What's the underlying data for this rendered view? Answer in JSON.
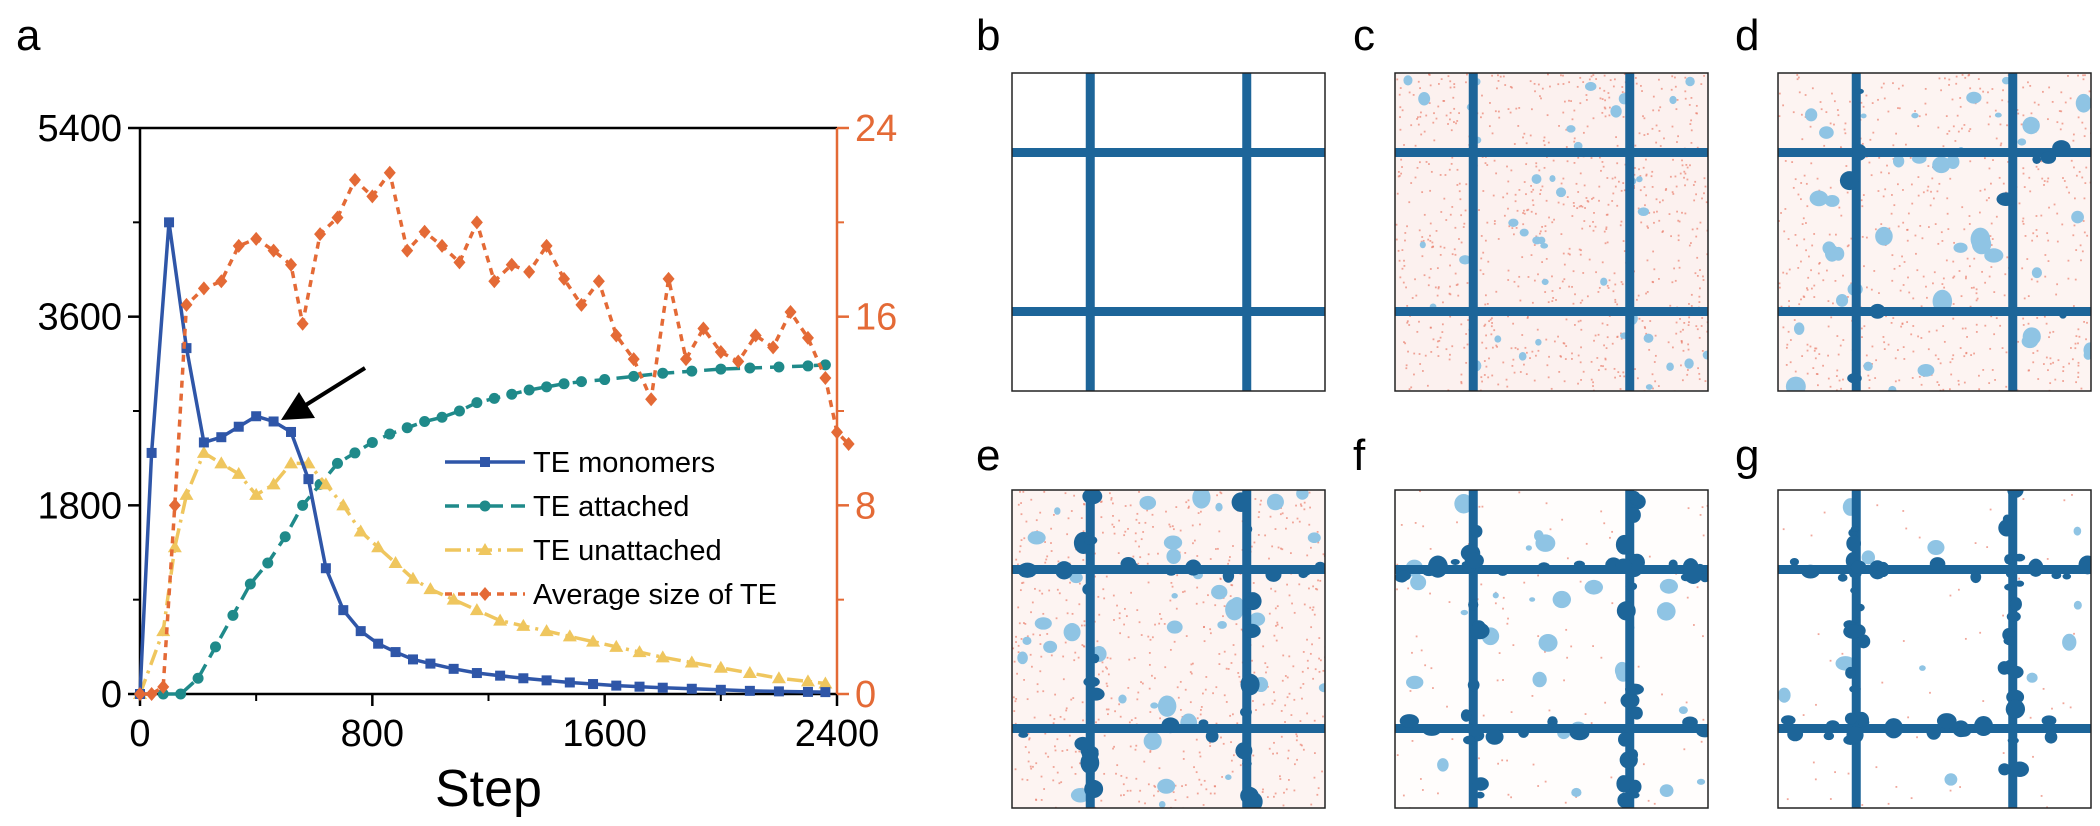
{
  "figure": {
    "panel_labels": [
      "a",
      "b",
      "c",
      "d",
      "e",
      "f",
      "g"
    ]
  },
  "chart_data": {
    "type": "line",
    "xlabel": "Step",
    "ylabel_left": "",
    "ylabel_right": "",
    "xlim": [
      0,
      2400
    ],
    "ylim_left": [
      0,
      5400
    ],
    "ylim_right": [
      0,
      24
    ],
    "xticks": [
      0,
      800,
      1600,
      2400
    ],
    "yticks_left": [
      0,
      1800,
      3600,
      5400
    ],
    "yticks_right": [
      0,
      8,
      16,
      24
    ],
    "legend_position": "center-right",
    "grid": false,
    "annotation": "arrow pointing at TE monomers curve near step 480",
    "colors": {
      "monomers": "#2f56a8",
      "attached": "#1f8a8a",
      "unattached": "#efc65e",
      "avg_size": "#e46a36",
      "right_axis": "#e46a36",
      "lattice": "#1d6599",
      "te_light": "#8fc4e4",
      "background_dots": "#f1b1a6"
    },
    "series": [
      {
        "name": "TE monomers",
        "axis": "left",
        "style": "solid-square",
        "points": [
          [
            0,
            0
          ],
          [
            40,
            2300
          ],
          [
            100,
            4500
          ],
          [
            160,
            3300
          ],
          [
            220,
            2400
          ],
          [
            280,
            2450
          ],
          [
            340,
            2550
          ],
          [
            400,
            2650
          ],
          [
            460,
            2600
          ],
          [
            520,
            2500
          ],
          [
            580,
            2050
          ],
          [
            640,
            1200
          ],
          [
            700,
            800
          ],
          [
            760,
            600
          ],
          [
            820,
            480
          ],
          [
            880,
            400
          ],
          [
            940,
            330
          ],
          [
            1000,
            290
          ],
          [
            1080,
            240
          ],
          [
            1160,
            200
          ],
          [
            1240,
            175
          ],
          [
            1320,
            150
          ],
          [
            1400,
            130
          ],
          [
            1480,
            110
          ],
          [
            1560,
            95
          ],
          [
            1640,
            80
          ],
          [
            1720,
            70
          ],
          [
            1800,
            60
          ],
          [
            1900,
            50
          ],
          [
            2000,
            40
          ],
          [
            2100,
            30
          ],
          [
            2200,
            25
          ],
          [
            2300,
            20
          ],
          [
            2360,
            18
          ]
        ]
      },
      {
        "name": "TE attached",
        "axis": "left",
        "style": "dash-circle",
        "points": [
          [
            0,
            0
          ],
          [
            80,
            0
          ],
          [
            140,
            0
          ],
          [
            200,
            150
          ],
          [
            260,
            450
          ],
          [
            320,
            750
          ],
          [
            380,
            1050
          ],
          [
            440,
            1250
          ],
          [
            500,
            1500
          ],
          [
            560,
            1800
          ],
          [
            620,
            2000
          ],
          [
            680,
            2200
          ],
          [
            740,
            2300
          ],
          [
            800,
            2400
          ],
          [
            860,
            2480
          ],
          [
            920,
            2540
          ],
          [
            980,
            2600
          ],
          [
            1040,
            2640
          ],
          [
            1100,
            2700
          ],
          [
            1160,
            2780
          ],
          [
            1220,
            2820
          ],
          [
            1280,
            2860
          ],
          [
            1340,
            2900
          ],
          [
            1400,
            2930
          ],
          [
            1460,
            2960
          ],
          [
            1520,
            2980
          ],
          [
            1600,
            3000
          ],
          [
            1700,
            3030
          ],
          [
            1800,
            3060
          ],
          [
            1900,
            3080
          ],
          [
            2000,
            3100
          ],
          [
            2100,
            3110
          ],
          [
            2200,
            3120
          ],
          [
            2300,
            3130
          ],
          [
            2360,
            3140
          ]
        ]
      },
      {
        "name": "TE unattached",
        "axis": "left",
        "style": "dashdot-triangle",
        "points": [
          [
            0,
            0
          ],
          [
            80,
            600
          ],
          [
            120,
            1400
          ],
          [
            160,
            1900
          ],
          [
            220,
            2300
          ],
          [
            280,
            2200
          ],
          [
            340,
            2100
          ],
          [
            400,
            1900
          ],
          [
            460,
            2000
          ],
          [
            520,
            2200
          ],
          [
            580,
            2200
          ],
          [
            640,
            2000
          ],
          [
            700,
            1800
          ],
          [
            760,
            1550
          ],
          [
            820,
            1400
          ],
          [
            880,
            1250
          ],
          [
            940,
            1100
          ],
          [
            1000,
            1000
          ],
          [
            1080,
            900
          ],
          [
            1160,
            800
          ],
          [
            1240,
            700
          ],
          [
            1320,
            650
          ],
          [
            1400,
            600
          ],
          [
            1480,
            550
          ],
          [
            1560,
            500
          ],
          [
            1640,
            450
          ],
          [
            1720,
            400
          ],
          [
            1800,
            350
          ],
          [
            1900,
            300
          ],
          [
            2000,
            250
          ],
          [
            2100,
            200
          ],
          [
            2200,
            150
          ],
          [
            2300,
            120
          ],
          [
            2360,
            100
          ]
        ]
      },
      {
        "name": "Average size of TE",
        "axis": "right",
        "style": "short-dash-diamond",
        "points": [
          [
            0,
            0
          ],
          [
            40,
            0
          ],
          [
            80,
            0.3
          ],
          [
            120,
            8
          ],
          [
            160,
            16.5
          ],
          [
            220,
            17.2
          ],
          [
            280,
            17.5
          ],
          [
            340,
            19
          ],
          [
            400,
            19.3
          ],
          [
            460,
            18.8
          ],
          [
            520,
            18.2
          ],
          [
            560,
            15.7
          ],
          [
            620,
            19.5
          ],
          [
            680,
            20.2
          ],
          [
            740,
            21.8
          ],
          [
            800,
            21.1
          ],
          [
            860,
            22.1
          ],
          [
            920,
            18.8
          ],
          [
            980,
            19.6
          ],
          [
            1040,
            19
          ],
          [
            1100,
            18.3
          ],
          [
            1160,
            20
          ],
          [
            1220,
            17.5
          ],
          [
            1280,
            18.2
          ],
          [
            1340,
            17.9
          ],
          [
            1400,
            19
          ],
          [
            1460,
            17.6
          ],
          [
            1520,
            16.5
          ],
          [
            1580,
            17.5
          ],
          [
            1640,
            15.2
          ],
          [
            1700,
            14.2
          ],
          [
            1760,
            12.5
          ],
          [
            1820,
            17.6
          ],
          [
            1880,
            14.2
          ],
          [
            1940,
            15.5
          ],
          [
            2000,
            14.5
          ],
          [
            2060,
            14.1
          ],
          [
            2120,
            15.2
          ],
          [
            2180,
            14.7
          ],
          [
            2240,
            16.2
          ],
          [
            2300,
            15.1
          ],
          [
            2360,
            13.4
          ],
          [
            2400,
            11.1
          ],
          [
            2440,
            10.6
          ]
        ]
      }
    ],
    "thumbnails": [
      {
        "label": "b",
        "density": "empty"
      },
      {
        "label": "c",
        "density": "dense-fine"
      },
      {
        "label": "d",
        "density": "moderate"
      },
      {
        "label": "e",
        "density": "attached-growing"
      },
      {
        "label": "f",
        "density": "sparse"
      },
      {
        "label": "g",
        "density": "sparser"
      }
    ]
  }
}
